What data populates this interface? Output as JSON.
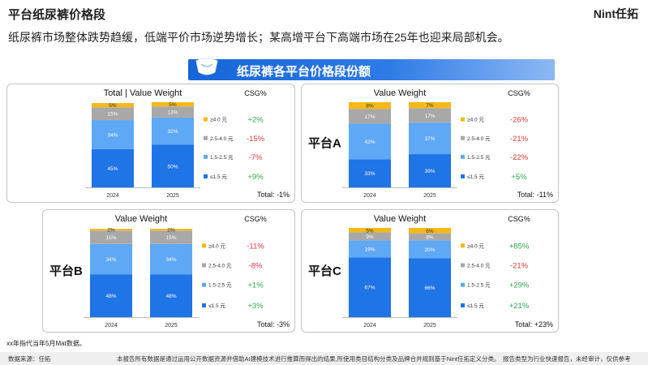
{
  "header": {
    "title": "平台纸尿裤价格段",
    "brand": "Nint任拓",
    "subtitle": "纸尿裤市场整体跌势趋缓，低端平价市场逆势增长；某高增平台下高端市场在25年也迎来局部机会。"
  },
  "banner": {
    "text": "纸尿裤各平台价格段份额"
  },
  "note": "xx年指代当年5月Mat数据。",
  "footer": {
    "source": "数据来源：任拓",
    "disclaimer": "本报告所有数据是通过运用公开数据资源并借助AI建模技术进行推算而得出的结果,所使用类目结构分类及品牌合并规则基于Nint任拓定义分类。",
    "type_note": "报告类型为行业快速报告，未经审计，仅供参考"
  },
  "colors": {
    "seg_low": "#1f74e6",
    "seg_lowmid": "#5ea8f5",
    "seg_mid": "#a8a8a8",
    "seg_high": "#f4b81a",
    "pos": "#2fa84f",
    "neg": "#e03a3a"
  },
  "chart_data": [
    {
      "type": "bar",
      "stacked": true,
      "title": "Total | Value Weight",
      "platform_label": "",
      "categories": [
        "2024",
        "2025"
      ],
      "series": [
        {
          "name": "≤1.5 元",
          "values": [
            45,
            50
          ],
          "labels": [
            "45%",
            "50%"
          ],
          "csg": "+9%"
        },
        {
          "name": "1.5-2.5 元",
          "values": [
            34,
            32
          ],
          "labels": [
            "34%",
            "32%"
          ],
          "csg": "-7%"
        },
        {
          "name": "2.5-4.0 元",
          "values": [
            15,
            13
          ],
          "labels": [
            "15%",
            "13%"
          ],
          "csg": "-15%"
        },
        {
          "name": "≥4.0 元",
          "values": [
            5,
            5
          ],
          "labels": [
            "5%",
            "5%"
          ],
          "csg": "+2%"
        }
      ],
      "csg_header": "CSG%",
      "total": "Total:  -1%",
      "ylim": [
        0,
        100
      ]
    },
    {
      "type": "bar",
      "stacked": true,
      "title": "Value Weight",
      "platform_label": "平台A",
      "categories": [
        "2024",
        "2025"
      ],
      "series": [
        {
          "name": "≤1.5 元",
          "values": [
            33,
            39
          ],
          "labels": [
            "33%",
            "39%"
          ],
          "csg": "+5%"
        },
        {
          "name": "1.5-2.5 元",
          "values": [
            42,
            37
          ],
          "labels": [
            "42%",
            "37%"
          ],
          "csg": "-22%"
        },
        {
          "name": "2.5-4.0 元",
          "values": [
            17,
            17
          ],
          "labels": [
            "17%",
            "17%"
          ],
          "csg": "-21%"
        },
        {
          "name": "≥4.0 元",
          "values": [
            8,
            7
          ],
          "labels": [
            "8%",
            "7%"
          ],
          "csg": "-26%"
        }
      ],
      "csg_header": "CSG%",
      "total": "Total:  -11%",
      "ylim": [
        0,
        100
      ]
    },
    {
      "type": "bar",
      "stacked": true,
      "title": "Value Weight",
      "platform_label": "平台B",
      "categories": [
        "2024",
        "2025"
      ],
      "series": [
        {
          "name": "≤1.5 元",
          "values": [
            48,
            48
          ],
          "labels": [
            "48%",
            "48%"
          ],
          "csg": "+3%"
        },
        {
          "name": "1.5-2.5 元",
          "values": [
            34,
            34
          ],
          "labels": [
            "34%",
            "34%"
          ],
          "csg": "+1%"
        },
        {
          "name": "2.5-4.0 元",
          "values": [
            15,
            15
          ],
          "labels": [
            "15%",
            "15%"
          ],
          "csg": "-8%"
        },
        {
          "name": "≥4.0 元",
          "values": [
            2,
            2
          ],
          "labels": [
            "2%",
            "2%"
          ],
          "csg": "-11%"
        }
      ],
      "csg_header": "CSG%",
      "total": "Total:  -3%",
      "ylim": [
        0,
        100
      ]
    },
    {
      "type": "bar",
      "stacked": true,
      "title": "Value Weight",
      "platform_label": "平台C",
      "categories": [
        "2024",
        "2025"
      ],
      "series": [
        {
          "name": "≤1.5 元",
          "values": [
            67,
            66
          ],
          "labels": [
            "67%",
            "66%"
          ],
          "csg": "+21%"
        },
        {
          "name": "1.5-2.5 元",
          "values": [
            19,
            20
          ],
          "labels": [
            "19%",
            "20%"
          ],
          "csg": "+29%"
        },
        {
          "name": "2.5-4.0 元",
          "values": [
            9,
            8
          ],
          "labels": [
            "9%",
            "8%"
          ],
          "csg": "-21%"
        },
        {
          "name": "≥4.0 元",
          "values": [
            5,
            6
          ],
          "labels": [
            "5%",
            "6%"
          ],
          "csg": "+85%"
        }
      ],
      "csg_header": "CSG%",
      "total": "Total:  +23%",
      "ylim": [
        0,
        100
      ]
    }
  ]
}
